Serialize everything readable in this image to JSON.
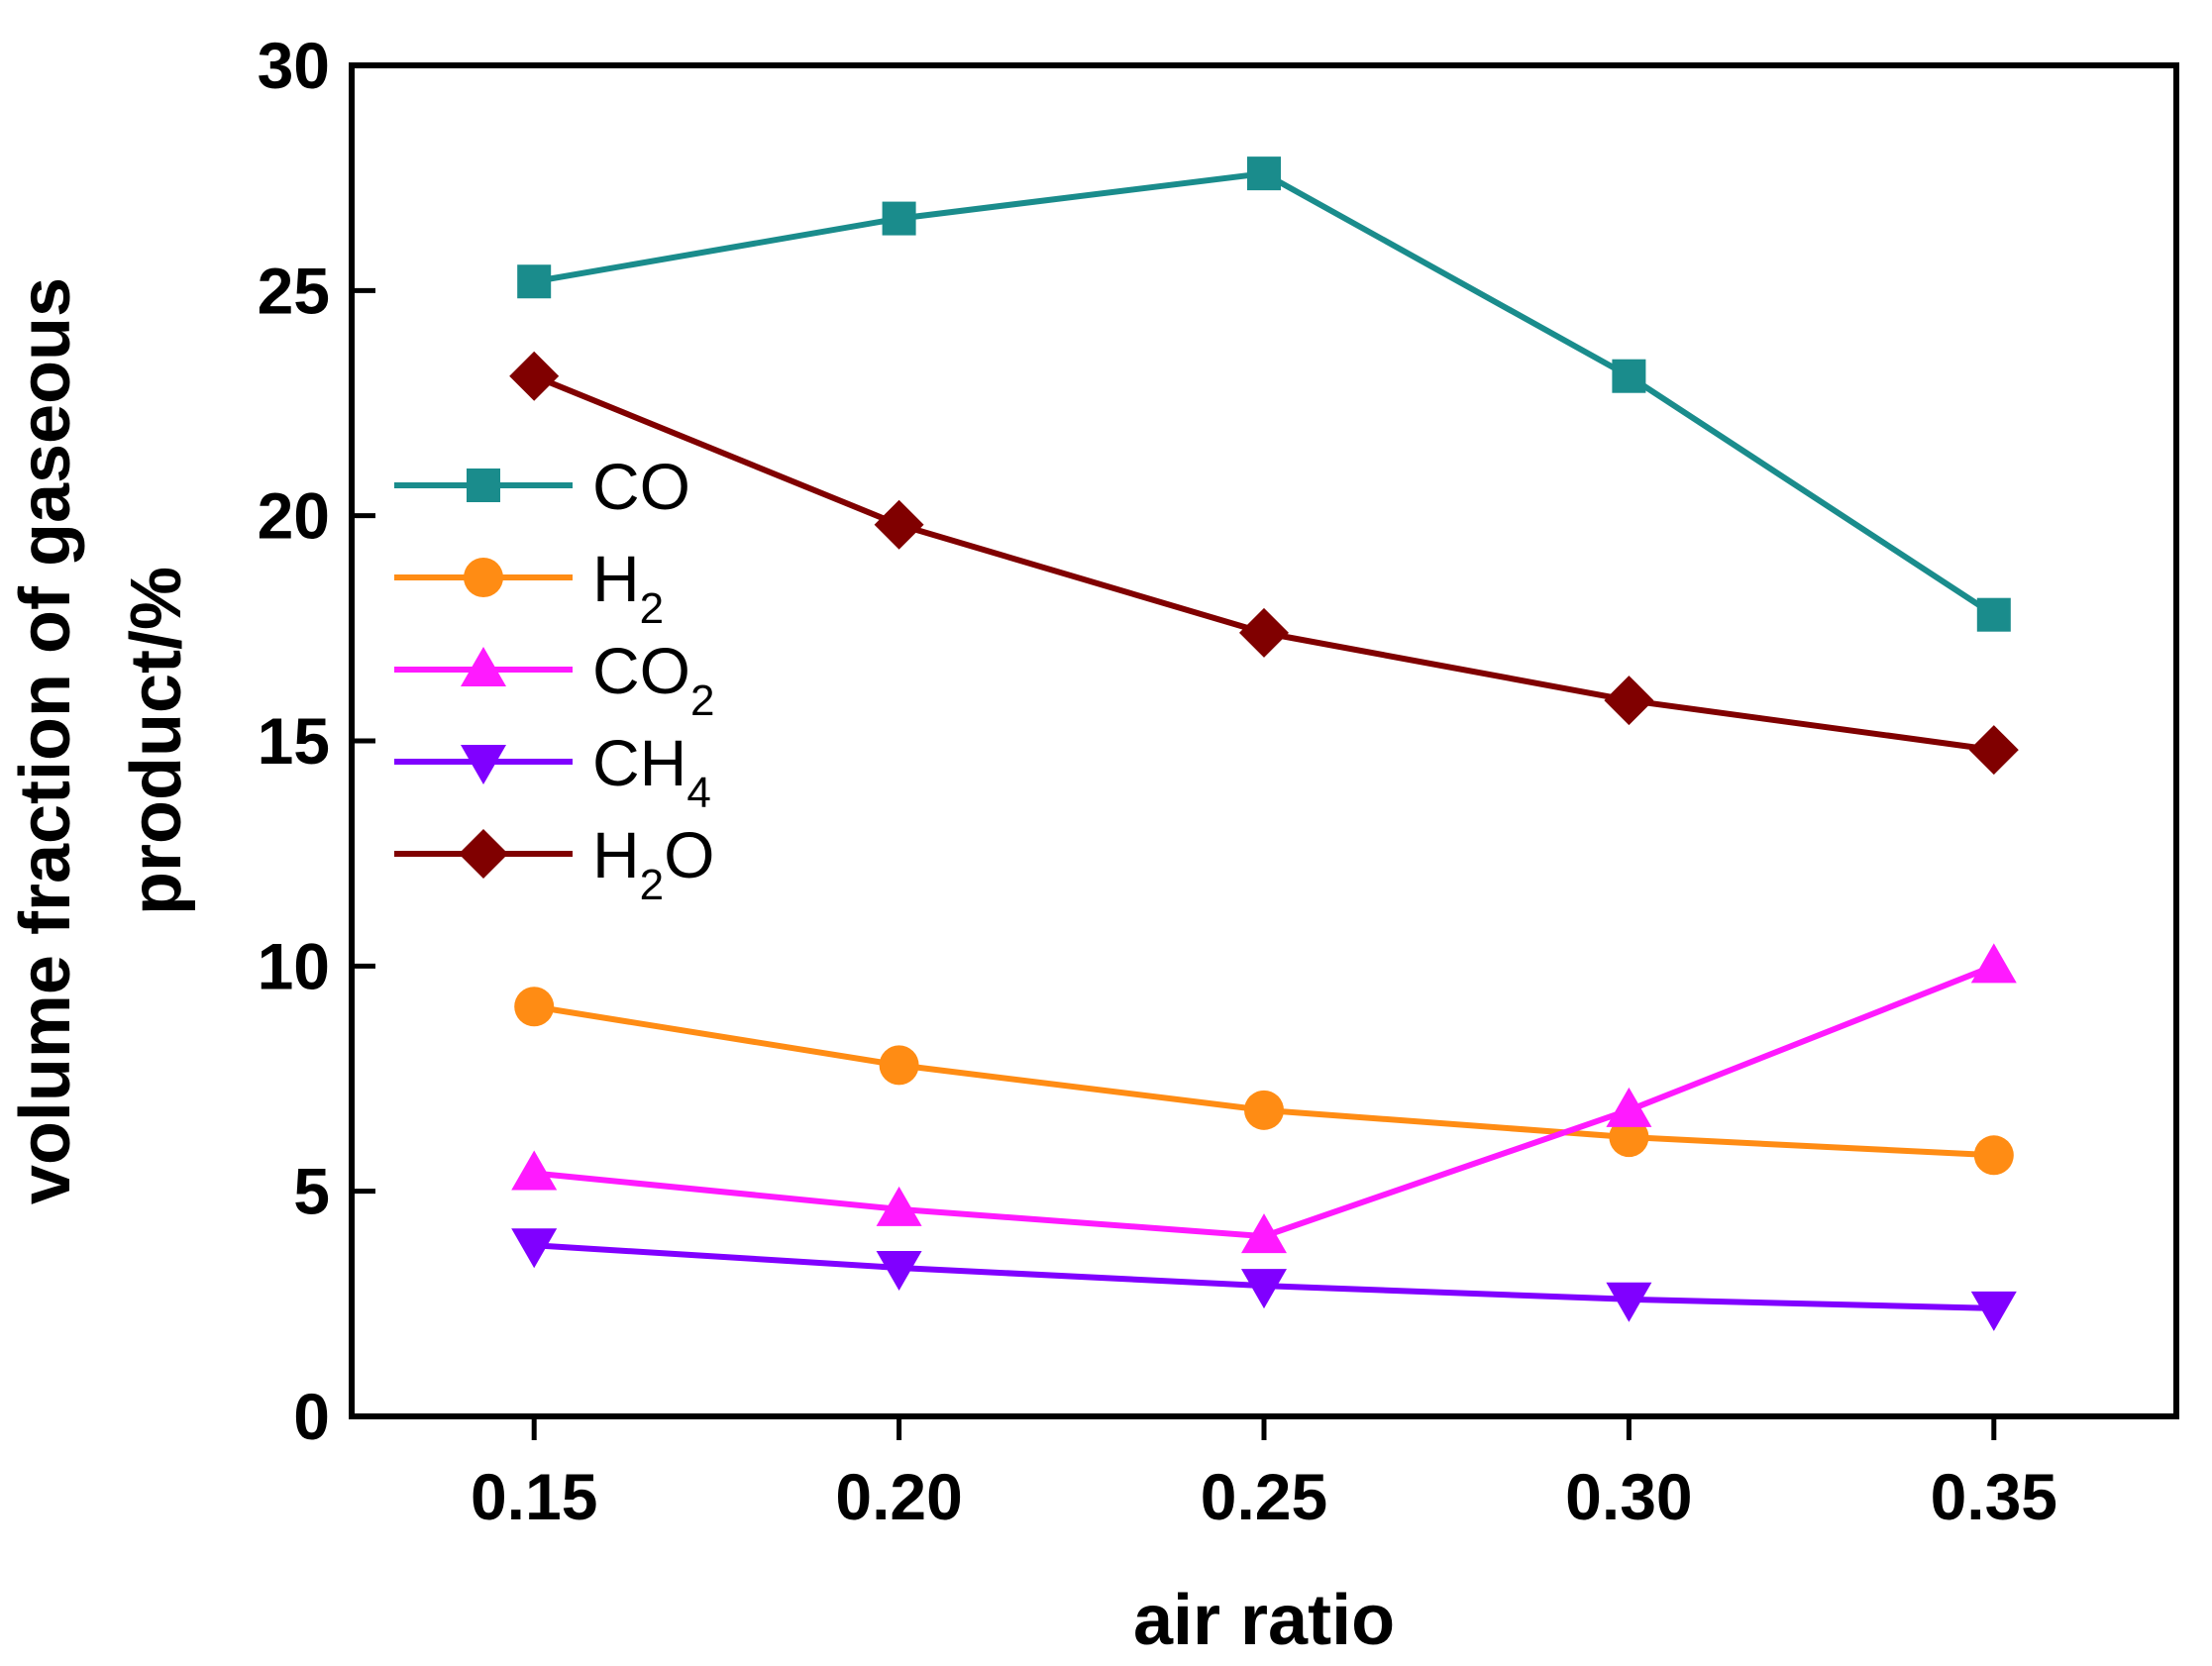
{
  "chart_data": {
    "type": "line",
    "title": "",
    "xlabel": "air ratio",
    "ylabel_line1": "volume fraction of gaseous",
    "ylabel_line2": "product/%",
    "x": [
      0.15,
      0.2,
      0.25,
      0.3,
      0.35
    ],
    "x_tick_labels": [
      "0.15",
      "0.20",
      "0.25",
      "0.30",
      "0.35"
    ],
    "xlim": [
      0.125,
      0.375
    ],
    "ylim": [
      0,
      30
    ],
    "y_ticks": [
      0,
      5,
      10,
      15,
      20,
      25,
      30
    ],
    "y_tick_labels": [
      "0",
      "5",
      "10",
      "15",
      "20",
      "25",
      "30"
    ],
    "grid": false,
    "legend_position": "left",
    "series": [
      {
        "name": "CO",
        "main": "CO",
        "sub": "",
        "suffix": "",
        "marker": "square",
        "color": "#1a8c8c",
        "values": [
          25.2,
          26.6,
          27.6,
          23.1,
          17.8
        ]
      },
      {
        "name": "H2",
        "main": "H",
        "sub": "2",
        "suffix": "",
        "marker": "circle",
        "color": "#ff8c14",
        "values": [
          9.1,
          7.8,
          6.8,
          6.2,
          5.8
        ]
      },
      {
        "name": "CO2",
        "main": "CO",
        "sub": "2",
        "suffix": "",
        "marker": "triangle-up",
        "color": "#ff1aff",
        "values": [
          5.4,
          4.6,
          4.0,
          6.8,
          10.0
        ]
      },
      {
        "name": "CH4",
        "main": "CH",
        "sub": "4",
        "suffix": "",
        "marker": "triangle-down",
        "color": "#8000ff",
        "values": [
          3.8,
          3.3,
          2.9,
          2.6,
          2.4
        ]
      },
      {
        "name": "H2O",
        "main": "H",
        "sub": "2",
        "suffix": "O",
        "marker": "diamond",
        "color": "#800000",
        "values": [
          23.1,
          19.8,
          17.4,
          15.9,
          14.8
        ]
      }
    ]
  }
}
